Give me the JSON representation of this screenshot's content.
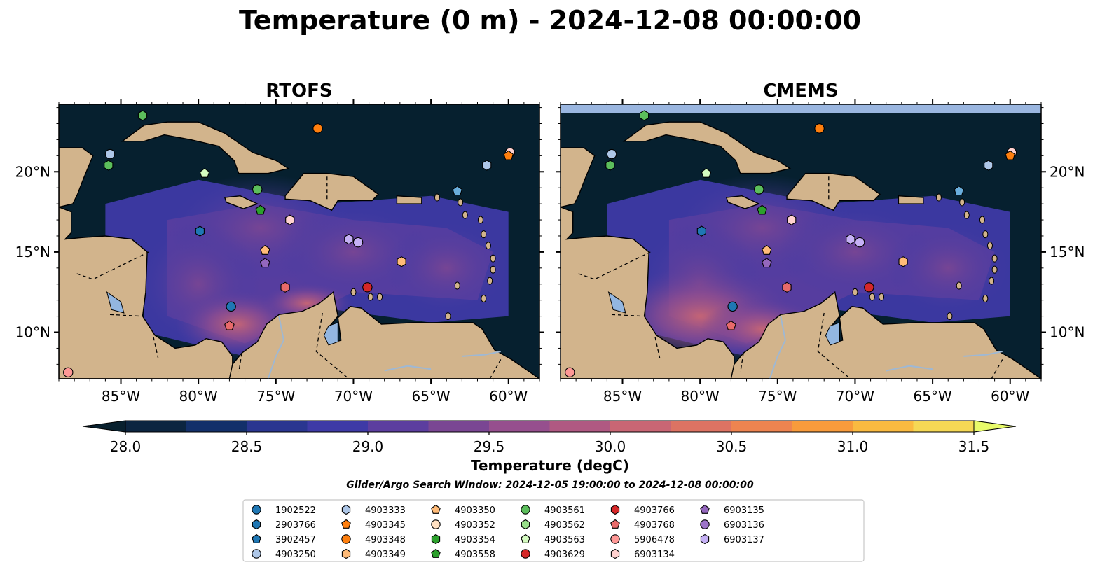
{
  "figure": {
    "title": "Temperature (0 m) - 2024-12-08 00:00:00",
    "search_window": "Glider/Argo Search Window: 2024-12-05 19:00:00 to 2024-12-08 00:00:00"
  },
  "panels": [
    {
      "title": "RTOFS",
      "top_band": false
    },
    {
      "title": "CMEMS",
      "top_band": true
    }
  ],
  "map": {
    "lon_range": [
      -89,
      -58
    ],
    "lat_range": [
      7.1,
      24.2
    ],
    "x_ticks": [
      {
        "value": -85,
        "label": "85°W"
      },
      {
        "value": -80,
        "label": "80°W"
      },
      {
        "value": -75,
        "label": "75°W"
      },
      {
        "value": -70,
        "label": "70°W"
      },
      {
        "value": -65,
        "label": "65°W"
      },
      {
        "value": -60,
        "label": "60°W"
      }
    ],
    "y_ticks": [
      {
        "value": 10,
        "label": "10°N"
      },
      {
        "value": 15,
        "label": "15°N"
      },
      {
        "value": 20,
        "label": "20°N"
      }
    ],
    "colors": {
      "ocean_dark": "#06202f",
      "land": "#d2b48c",
      "lake": "#93b6e0",
      "river": "#9fb8d3",
      "cmems_band": "#9ab6e0"
    }
  },
  "colorbar": {
    "label": "Temperature (degC)",
    "min": 28.0,
    "max": 31.5,
    "ticks": [
      "28.0",
      "28.5",
      "29.0",
      "29.5",
      "30.0",
      "30.5",
      "31.0",
      "31.5"
    ],
    "colors": [
      "#0c2540",
      "#13306a",
      "#2a3690",
      "#3e3aa6",
      "#5c3e9f",
      "#7a4693",
      "#964f8e",
      "#b05982",
      "#c96674",
      "#dd7363",
      "#ee8450",
      "#f89b3c",
      "#faba40",
      "#f5d855"
    ],
    "extend_min_color": "#08202e",
    "extend_max_color": "#e8fb6a"
  },
  "legend": {
    "items": [
      {
        "id": "1902522",
        "marker": "circle",
        "color": "#1f77b4"
      },
      {
        "id": "2903766",
        "marker": "hexagon",
        "color": "#1f77b4"
      },
      {
        "id": "3902457",
        "marker": "pentagon",
        "color": "#1f77b4"
      },
      {
        "id": "4903250",
        "marker": "circle",
        "color": "#aec7e8"
      },
      {
        "id": "4903333",
        "marker": "hexagon",
        "color": "#aec7e8"
      },
      {
        "id": "4903345",
        "marker": "pentagon",
        "color": "#ff7f0e"
      },
      {
        "id": "4903348",
        "marker": "circle",
        "color": "#ff7f0e"
      },
      {
        "id": "4903349",
        "marker": "hexagon",
        "color": "#ffbb78"
      },
      {
        "id": "4903350",
        "marker": "pentagon",
        "color": "#ffbb78"
      },
      {
        "id": "4903352",
        "marker": "circle",
        "color": "#ffe0c2"
      },
      {
        "id": "4903354",
        "marker": "hexagon",
        "color": "#2ca02c"
      },
      {
        "id": "4903558",
        "marker": "pentagon",
        "color": "#2ca02c"
      },
      {
        "id": "4903561",
        "marker": "circle",
        "color": "#5cbe5c"
      },
      {
        "id": "4903562",
        "marker": "hexagon",
        "color": "#98df8a"
      },
      {
        "id": "4903563",
        "marker": "pentagon",
        "color": "#d4fbc0"
      },
      {
        "id": "4903629",
        "marker": "circle",
        "color": "#d62728"
      },
      {
        "id": "4903766",
        "marker": "hexagon",
        "color": "#d62728"
      },
      {
        "id": "4903768",
        "marker": "pentagon",
        "color": "#e86a6a"
      },
      {
        "id": "5906478",
        "marker": "circle",
        "color": "#ff9896"
      },
      {
        "id": "6903134",
        "marker": "hexagon",
        "color": "#ffd1cf"
      },
      {
        "id": "6903135",
        "marker": "pentagon",
        "color": "#9467bd"
      },
      {
        "id": "6903136",
        "marker": "circle",
        "color": "#9d74c9"
      },
      {
        "id": "6903137",
        "marker": "hexagon",
        "color": "#c5b0f5"
      }
    ]
  },
  "observations": [
    {
      "id": "3902457",
      "marker": "hexagon",
      "color": "#5cbe5c",
      "lon": -83.6,
      "lat": 23.5
    },
    {
      "id": "4903348",
      "marker": "circle",
      "color": "#ff7f0e",
      "lon": -72.3,
      "lat": 22.7
    },
    {
      "id": "4903250",
      "marker": "circle",
      "color": "#aec7e8",
      "lon": -85.7,
      "lat": 21.1
    },
    {
      "id": "4903354",
      "marker": "hexagon",
      "color": "#5cbe5c",
      "lon": -85.8,
      "lat": 20.4
    },
    {
      "id": "4903563",
      "marker": "pentagon",
      "color": "#d4fbc0",
      "lon": -79.6,
      "lat": 19.9
    },
    {
      "id": "4903561",
      "marker": "circle",
      "color": "#5cbe5c",
      "lon": -76.2,
      "lat": 18.9
    },
    {
      "id": "4903558",
      "marker": "pentagon",
      "color": "#2ca02c",
      "lon": -76.0,
      "lat": 17.6
    },
    {
      "id": "4903333",
      "marker": "hexagon",
      "color": "#aec7e8",
      "lon": -61.4,
      "lat": 20.4
    },
    {
      "id": "6903134",
      "marker": "circle",
      "color": "#ffd1cf",
      "lon": -59.9,
      "lat": 21.2
    },
    {
      "id": "4903345",
      "marker": "pentagon",
      "color": "#ff7f0e",
      "lon": -60.0,
      "lat": 21.0
    },
    {
      "id": "2903766",
      "marker": "pentagon",
      "color": "#6aaedc",
      "lon": -63.3,
      "lat": 18.8
    },
    {
      "id": "2903766",
      "marker": "hexagon",
      "color": "#1f77b4",
      "lon": -79.9,
      "lat": 16.3
    },
    {
      "id": "6903134",
      "marker": "hexagon",
      "color": "#ffd1cf",
      "lon": -74.1,
      "lat": 17.0
    },
    {
      "id": "4903350",
      "marker": "pentagon",
      "color": "#ffbb78",
      "lon": -75.7,
      "lat": 15.1
    },
    {
      "id": "6903135",
      "marker": "pentagon",
      "color": "#9467bd",
      "lon": -75.7,
      "lat": 14.3
    },
    {
      "id": "6903137",
      "marker": "hexagon",
      "color": "#c5b0f5",
      "lon": -70.3,
      "lat": 15.8
    },
    {
      "id": "6903136",
      "marker": "circle",
      "color": "#c5b0f5",
      "lon": -69.7,
      "lat": 15.6
    },
    {
      "id": "4903349",
      "marker": "hexagon",
      "color": "#ffbb78",
      "lon": -66.9,
      "lat": 14.4
    },
    {
      "id": "4903766",
      "marker": "hexagon",
      "color": "#e86a6a",
      "lon": -74.4,
      "lat": 12.8
    },
    {
      "id": "4903629",
      "marker": "circle",
      "color": "#d62728",
      "lon": -69.1,
      "lat": 12.8
    },
    {
      "id": "1902522",
      "marker": "circle",
      "color": "#1f77b4",
      "lon": -77.9,
      "lat": 11.6
    },
    {
      "id": "4903768",
      "marker": "pentagon",
      "color": "#e86a6a",
      "lon": -78.0,
      "lat": 10.4
    },
    {
      "id": "5906478",
      "marker": "circle",
      "color": "#ff9896",
      "lon": -88.4,
      "lat": 7.5
    }
  ]
}
